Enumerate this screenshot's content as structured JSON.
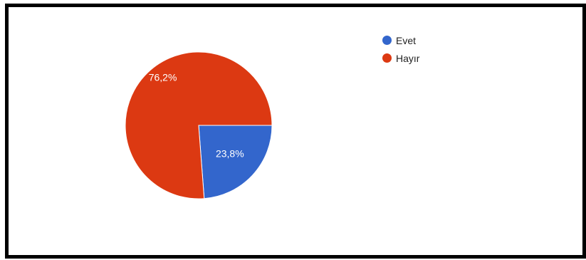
{
  "chart_data": {
    "type": "pie",
    "title": "",
    "slices": [
      {
        "label": "Evet",
        "value": 23.8,
        "value_label": "23,8%",
        "color": "#3366cc"
      },
      {
        "label": "Hayır",
        "value": 76.2,
        "value_label": "76,2%",
        "color": "#dc3912"
      }
    ],
    "legend_position": "top-right",
    "label_color": "#ffffff"
  }
}
